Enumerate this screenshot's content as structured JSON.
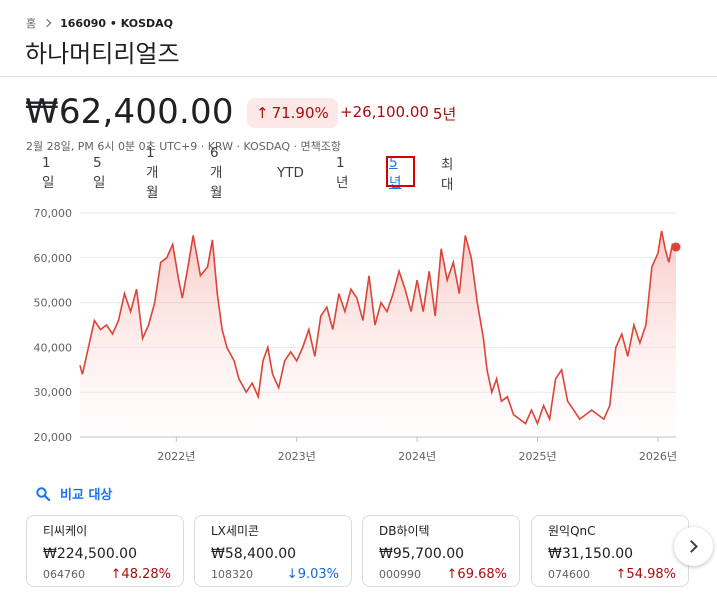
{
  "breadcrumb": {
    "home": "홈",
    "ticker": "166090 • KOSDAQ"
  },
  "company": "하나머티리얼즈",
  "quote": {
    "price": "₩62,400.00",
    "change_pct": "71.90%",
    "change_abs": "+26,100.00",
    "change_period": "5년",
    "meta": "2월 28일, PM 6시 0분 0초 UTC+9 · KRW · KOSDAQ · 면책조항"
  },
  "ranges": [
    "1일",
    "5일",
    "1개월",
    "6개월",
    "YTD",
    "1년",
    "5년",
    "최대"
  ],
  "active_range": "5년",
  "chart_data": {
    "type": "area",
    "x_ticks": [
      "2022년",
      "2023년",
      "2024년",
      "2025년",
      "2026년"
    ],
    "y_ticks": [
      "70,000",
      "60,000",
      "50,000",
      "40,000",
      "30,000",
      "20,000"
    ],
    "ylim": [
      20000,
      70000
    ],
    "line_color": "#db4437",
    "x": [
      2021.2,
      2021.22,
      2021.27,
      2021.32,
      2021.37,
      2021.42,
      2021.47,
      2021.52,
      2021.57,
      2021.62,
      2021.67,
      2021.72,
      2021.77,
      2021.82,
      2021.87,
      2021.92,
      2021.97,
      2022.02,
      2022.05,
      2022.09,
      2022.14,
      2022.2,
      2022.26,
      2022.3,
      2022.34,
      2022.38,
      2022.42,
      2022.48,
      2022.52,
      2022.58,
      2022.63,
      2022.68,
      2022.72,
      2022.76,
      2022.8,
      2022.85,
      2022.9,
      2022.95,
      2023.0,
      2023.05,
      2023.1,
      2023.15,
      2023.2,
      2023.25,
      2023.3,
      2023.35,
      2023.4,
      2023.45,
      2023.5,
      2023.55,
      2023.6,
      2023.65,
      2023.7,
      2023.75,
      2023.8,
      2023.85,
      2023.9,
      2023.95,
      2024.0,
      2024.05,
      2024.1,
      2024.15,
      2024.2,
      2024.25,
      2024.3,
      2024.35,
      2024.4,
      2024.45,
      2024.5,
      2024.55,
      2024.58,
      2024.62,
      2024.66,
      2024.7,
      2024.75,
      2024.8,
      2024.85,
      2024.9,
      2024.95,
      2025.0,
      2025.05,
      2025.1,
      2025.15,
      2025.2,
      2025.25,
      2025.3,
      2025.35,
      2025.4,
      2025.45,
      2025.5,
      2025.55,
      2025.6,
      2025.65,
      2025.7,
      2025.75,
      2025.8,
      2025.85,
      2025.9,
      2025.95,
      2026.0,
      2026.03,
      2026.06,
      2026.09,
      2026.12,
      2026.15
    ],
    "values": [
      36000,
      34000,
      40000,
      46000,
      44000,
      45000,
      43000,
      46000,
      52000,
      48000,
      53000,
      42000,
      45000,
      50000,
      59000,
      60000,
      63000,
      55000,
      51000,
      57000,
      65000,
      56000,
      58000,
      64000,
      52000,
      44000,
      40000,
      37000,
      33000,
      30000,
      32000,
      29000,
      37000,
      40000,
      34000,
      31000,
      37000,
      39000,
      37000,
      40000,
      44000,
      38000,
      47000,
      49000,
      44000,
      52000,
      48000,
      53000,
      51000,
      46000,
      56000,
      45000,
      50000,
      48000,
      52000,
      57000,
      53000,
      48000,
      55000,
      48000,
      57000,
      47000,
      62000,
      55000,
      59000,
      52000,
      65000,
      60000,
      50000,
      42000,
      35000,
      30000,
      33000,
      28000,
      29000,
      25000,
      24000,
      23000,
      26000,
      23000,
      27000,
      24000,
      33000,
      35000,
      28000,
      26000,
      24000,
      25000,
      26000,
      25000,
      24000,
      27000,
      40000,
      43000,
      38000,
      45000,
      41000,
      45000,
      58000,
      61000,
      66000,
      62000,
      59000,
      63000,
      62400
    ]
  },
  "compare": {
    "title": "비교 대상",
    "cards": [
      {
        "name": "티씨케이",
        "price": "₩224,500.00",
        "code": "064760",
        "arrow": "↑",
        "pct": "48.28%",
        "dir": "up"
      },
      {
        "name": "LX세미콘",
        "price": "₩58,400.00",
        "code": "108320",
        "arrow": "↓",
        "pct": "9.03%",
        "dir": "down"
      },
      {
        "name": "DB하이텍",
        "price": "₩95,700.00",
        "code": "000990",
        "arrow": "↑",
        "pct": "69.68%",
        "dir": "up"
      },
      {
        "name": "원익QnC",
        "price": "₩31,150.00",
        "code": "074600",
        "arrow": "↑",
        "pct": "54.98%",
        "dir": "up"
      }
    ]
  },
  "icons": {
    "compare": "search-icon",
    "next": "chevron-right-icon",
    "separator": "chevron-right-icon"
  }
}
